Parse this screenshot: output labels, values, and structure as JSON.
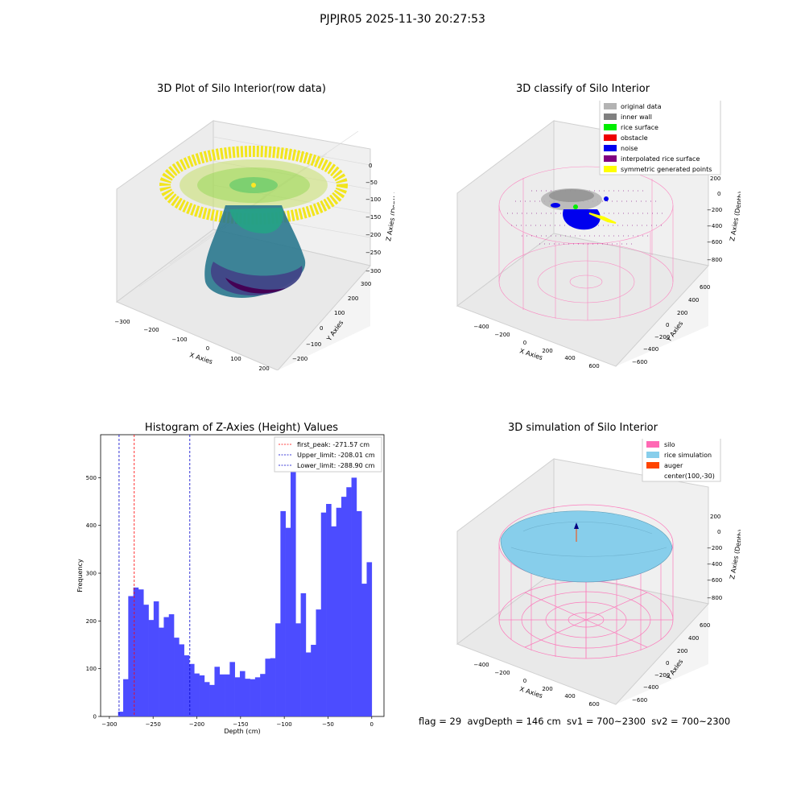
{
  "figure": {
    "title": "PJPJR05 2025-11-30 20:27:53",
    "status_line": "flag = 29  avgDepth = 146 cm  sv1 = 700~2300  sv2 = 700~2300"
  },
  "panels": {
    "raw": {
      "title": "3D Plot of Silo Interior(row data)",
      "x_label": "X Axies",
      "y_label": "Y Axies",
      "z_label": "Z Axies (Depth)",
      "x_ticks": [
        "−300",
        "−200",
        "−100",
        "0",
        "100",
        "200"
      ],
      "y_ticks": [
        "−200",
        "−100",
        "0",
        "100",
        "200",
        "300"
      ],
      "z_ticks": [
        "0",
        "−50",
        "−100",
        "−150",
        "−200",
        "−250",
        "−300"
      ]
    },
    "classify": {
      "title": "3D classify of Silo Interior",
      "x_label": "X Axies",
      "y_label": "Y Axies",
      "z_label": "Z Axies (Depth)",
      "x_ticks": [
        "−400",
        "−200",
        "0",
        "200",
        "400",
        "600"
      ],
      "y_ticks": [
        "−600",
        "−400",
        "−200",
        "0",
        "200",
        "400",
        "600"
      ],
      "z_ticks": [
        "200",
        "0",
        "−200",
        "−400",
        "−600",
        "−800"
      ],
      "legend": [
        {
          "label": "original data",
          "color": "#b3b3b3"
        },
        {
          "label": "inner wall",
          "color": "#808080"
        },
        {
          "label": "rice surface",
          "color": "#00ee00"
        },
        {
          "label": "obstacle",
          "color": "#ee0000"
        },
        {
          "label": "noise",
          "color": "#0000ee"
        },
        {
          "label": "interpolated rice surface",
          "color": "#800080"
        },
        {
          "label": "symmetric generated points",
          "color": "#ffff00"
        }
      ]
    },
    "simulation": {
      "title": "3D simulation of Silo Interior",
      "x_label": "X Axies",
      "y_label": "Y Axies",
      "z_label": "Z Axies (Depth)",
      "x_ticks": [
        "−400",
        "−200",
        "0",
        "200",
        "400",
        "600"
      ],
      "y_ticks": [
        "−600",
        "−400",
        "−200",
        "0",
        "200",
        "400",
        "600"
      ],
      "z_ticks": [
        "200",
        "0",
        "−200",
        "−400",
        "−600",
        "−800"
      ],
      "legend": [
        {
          "label": "silo",
          "color": "#ff69b4"
        },
        {
          "label": "rice simulation",
          "color": "#87ceeb"
        },
        {
          "label": "auger",
          "color": "#ff4500"
        },
        {
          "label": "center(100,-30)",
          "color": ""
        }
      ]
    }
  },
  "chart_data": [
    {
      "type": "bar",
      "title": "Histogram of Z-Axies (Height) Values",
      "xlabel": "Depth (cm)",
      "ylabel": "Frequency",
      "xlim": [
        -310,
        14
      ],
      "ylim": [
        0,
        590
      ],
      "x_ticks": [
        -300,
        -250,
        -200,
        -150,
        -100,
        -50,
        0
      ],
      "y_ticks": [
        0,
        100,
        200,
        300,
        400,
        500
      ],
      "bar_color": "#4c4cff",
      "bin_start": -290,
      "bin_width": 5.8,
      "values": [
        10,
        78,
        252,
        270,
        266,
        234,
        202,
        241,
        186,
        208,
        214,
        165,
        151,
        128,
        110,
        90,
        86,
        72,
        66,
        104,
        88,
        88,
        114,
        82,
        95,
        79,
        78,
        82,
        89,
        121,
        122,
        195,
        430,
        395,
        512,
        195,
        258,
        134,
        150,
        224,
        427,
        445,
        398,
        437,
        460,
        480,
        500,
        430,
        278,
        323
      ],
      "vlines": [
        {
          "label": "first_peak: -271.57 cm",
          "x": -271.57,
          "color": "#ff0000"
        },
        {
          "label": "Upper_limit: -208.01 cm",
          "x": -208.01,
          "color": "#0000cc"
        },
        {
          "label": "Lower_limit: -288.90 cm",
          "x": -288.9,
          "color": "#0000cc"
        }
      ],
      "legend_position": "top-right"
    }
  ]
}
